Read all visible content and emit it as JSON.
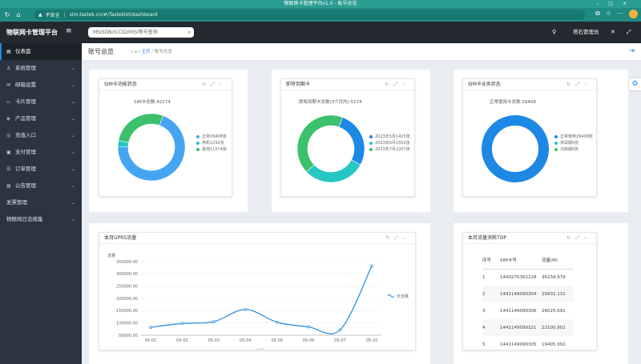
{
  "browser": {
    "window_title": "物联网卡管理平台v1.0 - 账号总览",
    "security_label": "不安全",
    "url": "sim.tastek.cn/#/Tasteklot/dashboard"
  },
  "app": {
    "brand": "物联网卡管理平台",
    "search_placeholder": "MSISDN/ICCID/IMSI等号查询",
    "username": "塔石管理员"
  },
  "sidebar": {
    "items": [
      {
        "label": "仪表盘",
        "active": true
      },
      {
        "label": "系统管理"
      },
      {
        "label": "邮箱设置"
      },
      {
        "label": "卡片管理"
      },
      {
        "label": "产品管理"
      },
      {
        "label": "充值入口"
      },
      {
        "label": "支付管理"
      },
      {
        "label": "订单管理"
      },
      {
        "label": "公告管理"
      },
      {
        "label": "发票管理"
      },
      {
        "label": "物联网日志搜集"
      }
    ]
  },
  "breadcrumb": {
    "page_title": "账号总览",
    "home": "主页",
    "current": "账号总览",
    "sep": "/"
  },
  "cards": {
    "sim_status": {
      "title": "SIM卡功能状态",
      "total": "SIM卡总数:42274",
      "legend": [
        "正常29408张",
        "停机1292张",
        "其他11574张"
      ]
    },
    "expiring": {
      "title": "即将到期卡",
      "total": "即将到期卡总数(3个月内):5174",
      "legend": [
        "2023年5月1415张",
        "2023年6月1552张",
        "2023年7月2207张"
      ]
    },
    "business": {
      "title": "SIM卡业务状态",
      "total": "正常使用卡总数:29408",
      "legend": [
        "正常使用29408张",
        "测试期0张",
        "沉默期0张"
      ]
    },
    "gprs": {
      "title": "本月GPRS流量"
    },
    "top": {
      "title": "本月流量消耗TOP",
      "headers": [
        "序号",
        "SIM卡号",
        "流量(M)"
      ],
      "rows": [
        [
          "1",
          "1440270362228",
          "36234.979"
        ],
        [
          "2",
          "1441149099304",
          "29931.131"
        ],
        [
          "3",
          "1441149099306",
          "26025.691"
        ],
        [
          "4",
          "1441149099321",
          "23100.802"
        ],
        [
          "5",
          "1441149099305",
          "19405.992"
        ]
      ]
    }
  },
  "colors": {
    "accent": "#1e88e5",
    "sidebar": "#2b3440",
    "green": "#3cc06b",
    "blue": "#46a5f2",
    "teal": "#26c6c2",
    "titlebar": "#2a9d91"
  },
  "chart_data": [
    {
      "type": "pie",
      "title": "SIM卡功能状态",
      "labels": [
        "正常",
        "停机",
        "其他"
      ],
      "values": [
        29408,
        1292,
        11574
      ],
      "colors": [
        "#46a5f2",
        "#26c6c2",
        "#3cc06b"
      ]
    },
    {
      "type": "pie",
      "title": "即将到期卡",
      "labels": [
        "2023年5月",
        "2023年6月",
        "2023年7月"
      ],
      "values": [
        1415,
        1552,
        2207
      ],
      "colors": [
        "#1e88e5",
        "#26c6c2",
        "#3cc06b"
      ]
    },
    {
      "type": "pie",
      "title": "SIM卡业务状态",
      "labels": [
        "正常使用",
        "测试期",
        "沉默期"
      ],
      "values": [
        29408,
        0,
        0
      ],
      "colors": [
        "#1e88e5",
        "#26c6c2",
        "#3cc06b"
      ]
    },
    {
      "type": "line",
      "title": "本月GPRS流量",
      "ylabel": "流量",
      "xlabel": "日期",
      "categories": [
        "05-01",
        "05-02",
        "05-03",
        "05-04",
        "05-05",
        "05-06",
        "05-07",
        "05-10"
      ],
      "series": [
        {
          "name": "日流量",
          "values": [
            82000,
            98000,
            105000,
            155000,
            103000,
            84000,
            72000,
            332000
          ]
        }
      ],
      "yticks": [
        "350000.00",
        "300000.00",
        "250000.00",
        "200000.00",
        "150000.00",
        "100000.00",
        "50000.00"
      ],
      "ylim": [
        50000,
        350000
      ]
    }
  ]
}
